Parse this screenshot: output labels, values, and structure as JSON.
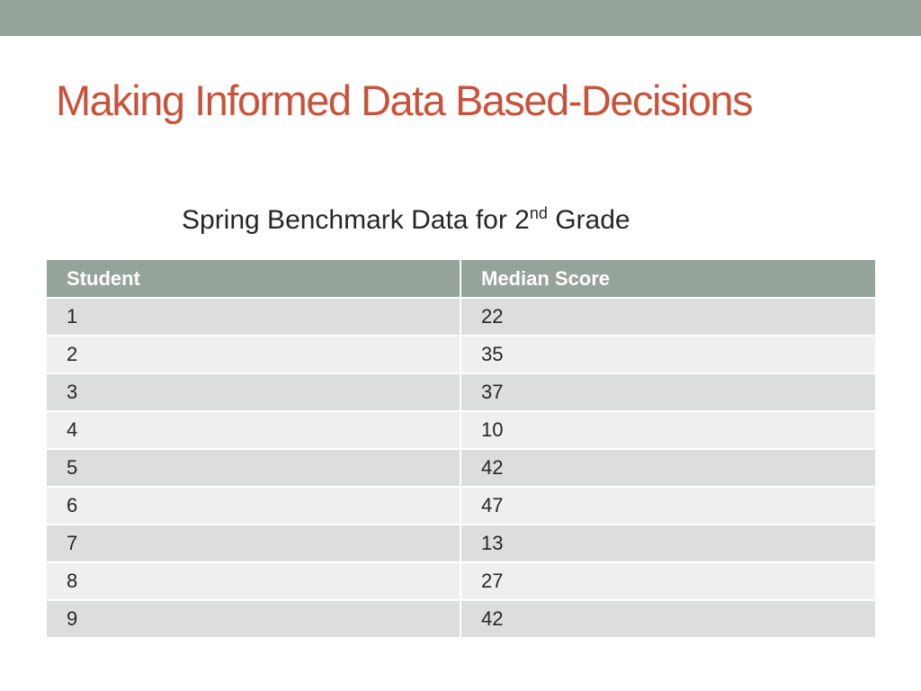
{
  "slide": {
    "title": "Making Informed Data Based-Decisions",
    "subtitle_main": "Spring Benchmark Data for 2",
    "subtitle_sup": "nd",
    "subtitle_end": " Grade"
  },
  "colors": {
    "accent_bar": "#95a39a",
    "title": "#c9533a",
    "row_dark": "#dcdedd",
    "row_light": "#eeefee"
  },
  "table": {
    "headers": [
      "Student",
      "Median Score"
    ],
    "rows": [
      [
        "1",
        "22"
      ],
      [
        "2",
        "35"
      ],
      [
        "3",
        "37"
      ],
      [
        "4",
        "10"
      ],
      [
        "5",
        "42"
      ],
      [
        "6",
        "47"
      ],
      [
        "7",
        "13"
      ],
      [
        "8",
        "27"
      ],
      [
        "9",
        "42"
      ]
    ]
  },
  "chart_data": {
    "type": "table",
    "title": "Spring Benchmark Data for 2nd Grade",
    "columns": [
      "Student",
      "Median Score"
    ],
    "x": [
      1,
      2,
      3,
      4,
      5,
      6,
      7,
      8,
      9
    ],
    "values": [
      22,
      35,
      37,
      10,
      42,
      47,
      13,
      27,
      42
    ]
  }
}
